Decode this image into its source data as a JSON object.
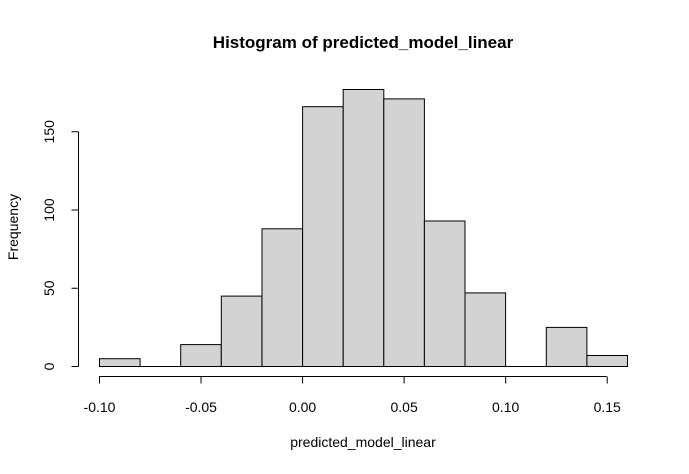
{
  "chart_data": {
    "type": "bar",
    "title": "Histogram of predicted_model_linear",
    "xlabel": "predicted_model_linear",
    "ylabel": "Frequency",
    "bin_edges": [
      -0.1,
      -0.08,
      -0.06,
      -0.04,
      -0.02,
      0.0,
      0.02,
      0.04,
      0.06,
      0.08,
      0.1,
      0.12,
      0.14,
      0.16
    ],
    "values": [
      5,
      0,
      14,
      45,
      88,
      166,
      177,
      171,
      93,
      47,
      0,
      25,
      7
    ],
    "xlim": [
      -0.1,
      0.16
    ],
    "ylim": [
      0,
      177
    ],
    "x_ticks": [
      -0.1,
      -0.05,
      0.0,
      0.05,
      0.1,
      0.15
    ],
    "x_tick_labels": [
      "-0.10",
      "-0.05",
      "0.00",
      "0.05",
      "0.10",
      "0.15"
    ],
    "y_ticks": [
      0,
      50,
      100,
      150
    ],
    "y_tick_labels": [
      "0",
      "50",
      "100",
      "150"
    ],
    "bar_color": "#d3d3d3",
    "grid": false
  }
}
